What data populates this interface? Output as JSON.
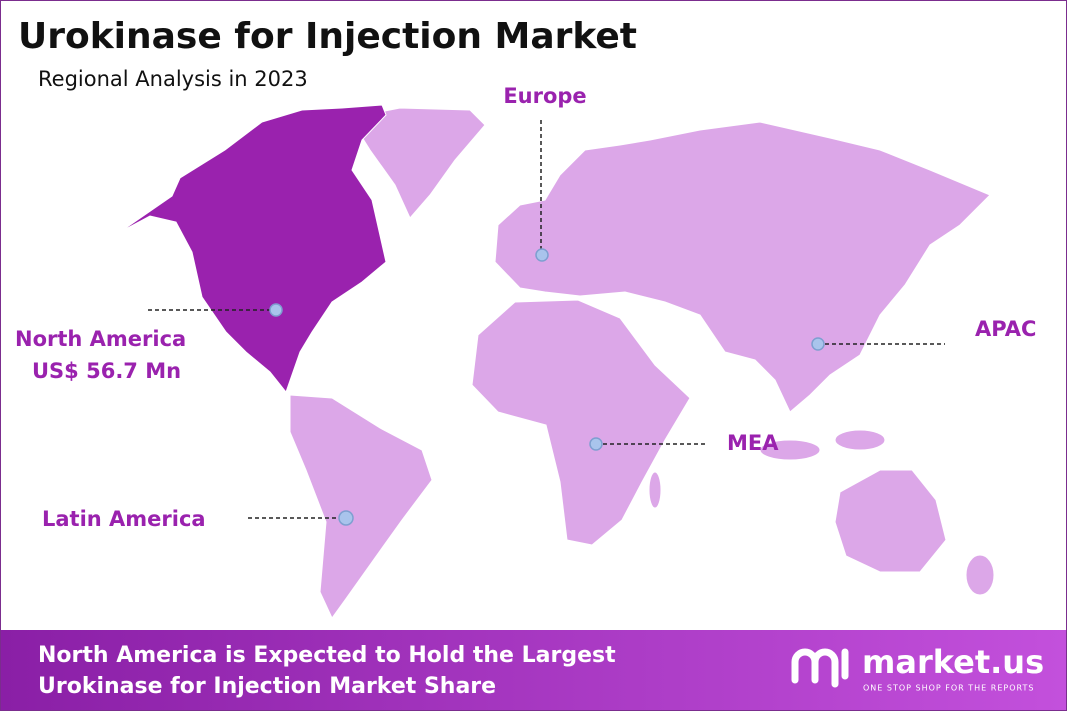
{
  "header": {
    "title": "Urokinase for Injection Market",
    "subtitle": "Regional Analysis in 2023"
  },
  "regions": [
    {
      "label": "Europe"
    },
    {
      "label": "North America",
      "value_text": "US$ 56.7 Mn"
    },
    {
      "label": "APAC"
    },
    {
      "label": "MEA"
    },
    {
      "label": "Latin America"
    }
  ],
  "footer": {
    "lines": [
      "North America is Expected to Hold the Largest",
      "Urokinase for Injection Market Share"
    ],
    "brand": "market.us",
    "tagline": "ONE STOP SHOP FOR THE REPORTS"
  }
}
